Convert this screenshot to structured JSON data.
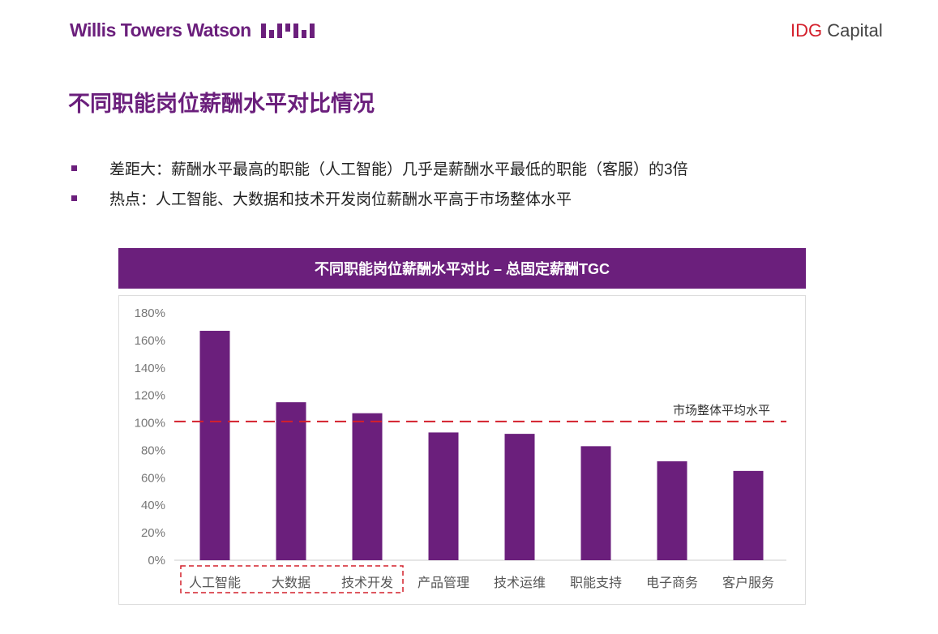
{
  "header": {
    "left_logo": "Willis Towers Watson",
    "right_logo_prefix": "IDG",
    "right_logo_suffix": " Capital"
  },
  "page_title": "不同职能岗位薪酬水平对比情况",
  "bullets": [
    "差距大：薪酬水平最高的职能（人工智能）几乎是薪酬水平最低的职能（客服）的3倍",
    "热点：人工智能、大数据和技术开发岗位薪酬水平高于市场整体水平"
  ],
  "colors": {
    "brand": "#6b1f7c",
    "bar": "#6b1f7c",
    "reference_line": "#d4202c"
  },
  "chart_data": {
    "type": "bar",
    "title": "不同职能岗位薪酬水平对比 – 总固定薪酬TGC",
    "categories": [
      "人工智能",
      "大数据",
      "技术开发",
      "产品管理",
      "技术运维",
      "职能支持",
      "电子商务",
      "客户服务"
    ],
    "values": [
      167,
      115,
      107,
      93,
      92,
      83,
      72,
      65
    ],
    "unit": "%",
    "ylim": [
      0,
      180
    ],
    "yticks": [
      "0%",
      "20%",
      "40%",
      "60%",
      "80%",
      "100%",
      "120%",
      "140%",
      "160%",
      "180%"
    ],
    "reference_line": {
      "label": "市场整体平均水平",
      "value": 101
    },
    "highlighted_categories": [
      "人工智能",
      "大数据",
      "技术开发"
    ],
    "grid": false,
    "legend": "none"
  }
}
